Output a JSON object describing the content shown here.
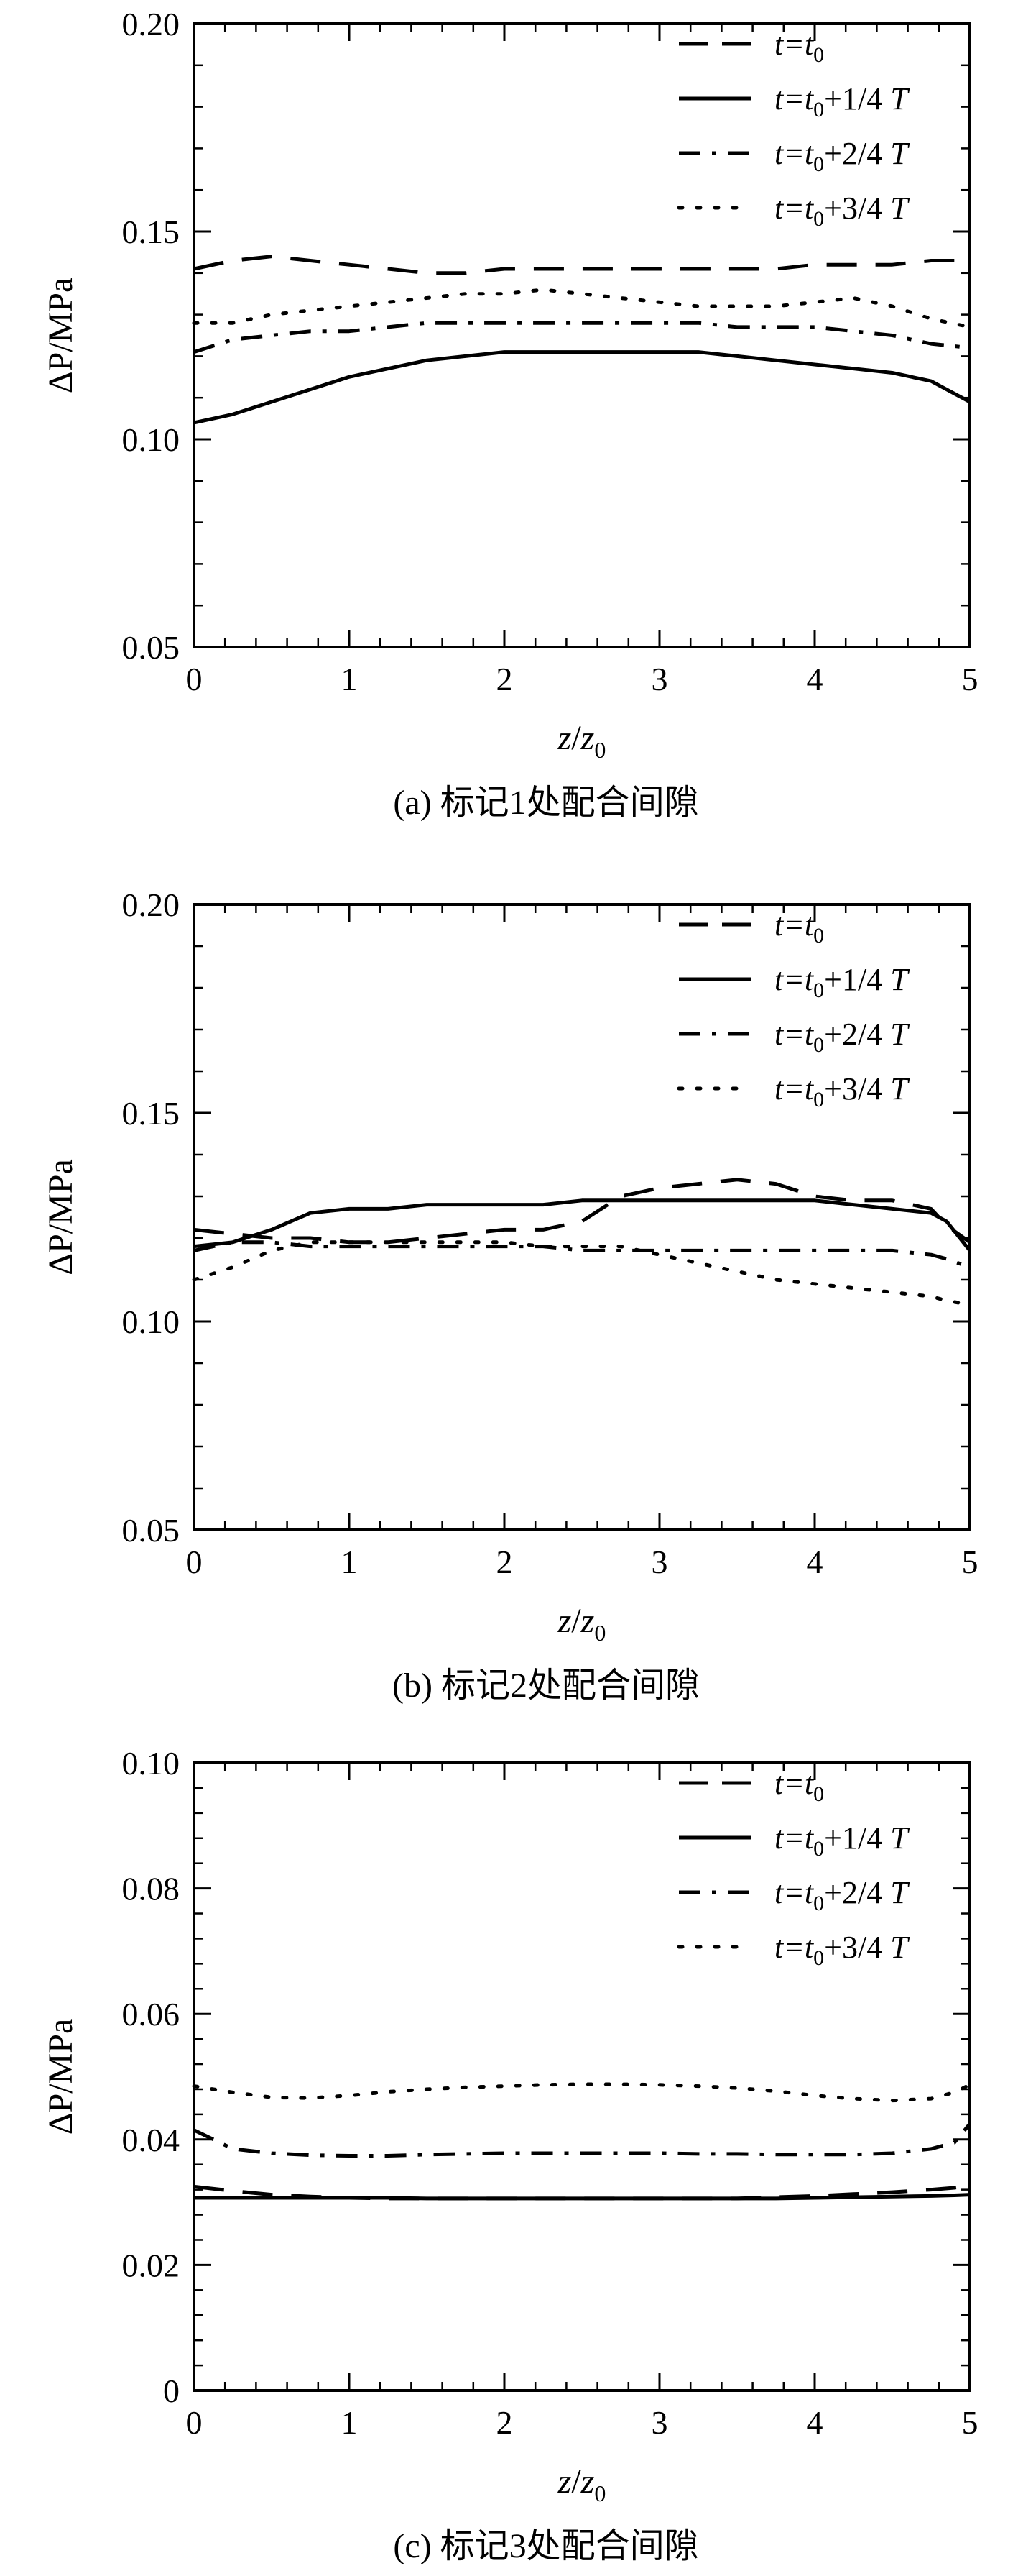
{
  "figure": "Pressure difference along z at four times for three marks",
  "legend_entries": [
    {
      "time": "t0",
      "parts": [
        "t",
        "=t",
        "0",
        ""
      ],
      "dash": "dashed"
    },
    {
      "time": "t0+1/4 T",
      "parts": [
        "t",
        "=t",
        "0",
        "+1/4 T"
      ],
      "dash": "solid"
    },
    {
      "time": "t0+2/4 T",
      "parts": [
        "t",
        "=t",
        "0",
        "+2/4 T"
      ],
      "dash": "dashdot"
    },
    {
      "time": "t0+3/4 T",
      "parts": [
        "t",
        "=t",
        "0",
        "+3/4 T"
      ],
      "dash": "dotted"
    }
  ],
  "chart_data": [
    {
      "type": "line",
      "caption": "(a) 标记1处配合间隙",
      "xlabel": "z/z0",
      "xlabel_parts": [
        "z",
        "/",
        "z",
        "0"
      ],
      "ylabel": "ΔP/MPa",
      "xlim": [
        0,
        5
      ],
      "ylim": [
        0.05,
        0.2
      ],
      "x_ticks": [
        "0",
        "1",
        "2",
        "3",
        "4",
        "5"
      ],
      "y_ticks": [
        "0.05",
        "0.10",
        "0.15",
        "0.20"
      ],
      "y_tick_values": [
        0.05,
        0.1,
        0.15,
        0.2
      ],
      "x": [
        0,
        0.25,
        0.5,
        0.75,
        1,
        1.25,
        1.5,
        1.75,
        2,
        2.25,
        2.5,
        2.75,
        3,
        3.25,
        3.5,
        3.75,
        4,
        4.25,
        4.5,
        4.75,
        5
      ],
      "series": [
        {
          "name": "t=t0",
          "values": [
            0.141,
            0.143,
            0.144,
            0.143,
            0.142,
            0.141,
            0.14,
            0.14,
            0.141,
            0.141,
            0.141,
            0.141,
            0.141,
            0.141,
            0.141,
            0.141,
            0.142,
            0.142,
            0.142,
            0.143,
            0.143
          ]
        },
        {
          "name": "t=t0+1/4 T",
          "values": [
            0.104,
            0.106,
            0.109,
            0.112,
            0.115,
            0.117,
            0.119,
            0.12,
            0.121,
            0.121,
            0.121,
            0.121,
            0.121,
            0.121,
            0.12,
            0.119,
            0.118,
            0.117,
            0.116,
            0.114,
            0.109
          ]
        },
        {
          "name": "t=t0+2/4 T",
          "values": [
            0.121,
            0.124,
            0.125,
            0.126,
            0.126,
            0.127,
            0.128,
            0.128,
            0.128,
            0.128,
            0.128,
            0.128,
            0.128,
            0.128,
            0.127,
            0.127,
            0.127,
            0.126,
            0.125,
            0.123,
            0.122
          ]
        },
        {
          "name": "t=t0+3/4 T",
          "values": [
            0.128,
            0.128,
            0.13,
            0.131,
            0.132,
            0.133,
            0.134,
            0.135,
            0.135,
            0.136,
            0.135,
            0.134,
            0.133,
            0.132,
            0.132,
            0.132,
            0.133,
            0.134,
            0.132,
            0.129,
            0.127
          ]
        }
      ]
    },
    {
      "type": "line",
      "caption": "(b) 标记2处配合间隙",
      "xlabel": "z/z0",
      "xlabel_parts": [
        "z",
        "/",
        "z",
        "0"
      ],
      "ylabel": "ΔP/MPa",
      "xlim": [
        0,
        5
      ],
      "ylim": [
        0.05,
        0.2
      ],
      "x_ticks": [
        "0",
        "1",
        "2",
        "3",
        "4",
        "5"
      ],
      "y_ticks": [
        "0.05",
        "0.10",
        "0.15",
        "0.20"
      ],
      "y_tick_values": [
        0.05,
        0.1,
        0.15,
        0.2
      ],
      "x": [
        0,
        0.25,
        0.5,
        0.75,
        1,
        1.25,
        1.5,
        1.75,
        2,
        2.25,
        2.5,
        2.75,
        3,
        3.25,
        3.5,
        3.75,
        4,
        4.25,
        4.5,
        4.75,
        4.85,
        5
      ],
      "series": [
        {
          "name": "t=t0",
          "values": [
            0.122,
            0.121,
            0.12,
            0.12,
            0.119,
            0.119,
            0.12,
            0.121,
            0.122,
            0.122,
            0.124,
            0.13,
            0.132,
            0.133,
            0.134,
            0.133,
            0.13,
            0.129,
            0.129,
            0.127,
            0.123,
            0.119
          ]
        },
        {
          "name": "t=t0+1/4 T",
          "values": [
            0.118,
            0.119,
            0.122,
            0.126,
            0.127,
            0.127,
            0.128,
            0.128,
            0.128,
            0.128,
            0.129,
            0.129,
            0.129,
            0.129,
            0.129,
            0.129,
            0.129,
            0.128,
            0.127,
            0.126,
            0.124,
            0.117
          ]
        },
        {
          "name": "t=t0+2/4 T",
          "values": [
            0.117,
            0.119,
            0.119,
            0.118,
            0.118,
            0.118,
            0.118,
            0.118,
            0.118,
            0.118,
            0.117,
            0.117,
            0.117,
            0.117,
            0.117,
            0.117,
            0.117,
            0.117,
            0.117,
            0.116,
            0.115,
            0.113
          ]
        },
        {
          "name": "t=t0+3/4 T",
          "values": [
            0.11,
            0.113,
            0.117,
            0.119,
            0.119,
            0.119,
            0.119,
            0.119,
            0.119,
            0.118,
            0.118,
            0.118,
            0.116,
            0.114,
            0.112,
            0.11,
            0.109,
            0.108,
            0.107,
            0.106,
            0.105,
            0.104
          ]
        }
      ]
    },
    {
      "type": "line",
      "caption": "(c) 标记3处配合间隙",
      "xlabel": "z/z0",
      "xlabel_parts": [
        "z",
        "/",
        "z",
        "0"
      ],
      "ylabel": "ΔP/MPa",
      "xlim": [
        0,
        5
      ],
      "ylim": [
        0,
        0.1
      ],
      "x_ticks": [
        "0",
        "1",
        "2",
        "3",
        "4",
        "5"
      ],
      "y_ticks": [
        "0",
        "0.02",
        "0.04",
        "0.06",
        "0.08",
        "0.10"
      ],
      "y_tick_values": [
        0,
        0.02,
        0.04,
        0.06,
        0.08,
        0.1
      ],
      "x": [
        0,
        0.25,
        0.5,
        0.75,
        1,
        1.25,
        1.5,
        1.75,
        2,
        2.25,
        2.5,
        2.75,
        3,
        3.25,
        3.5,
        3.75,
        4,
        4.25,
        4.5,
        4.75,
        4.9,
        5
      ],
      "series": [
        {
          "name": "t=t0",
          "values": [
            0.0325,
            0.0318,
            0.0312,
            0.0309,
            0.0307,
            0.0306,
            0.0306,
            0.0306,
            0.0306,
            0.0306,
            0.0306,
            0.0306,
            0.0306,
            0.0306,
            0.0306,
            0.0308,
            0.031,
            0.0313,
            0.0316,
            0.032,
            0.0323,
            0.0326
          ]
        },
        {
          "name": "t=t0+1/4 T",
          "values": [
            0.0307,
            0.0307,
            0.0307,
            0.0307,
            0.0307,
            0.0307,
            0.0306,
            0.0306,
            0.0306,
            0.0306,
            0.0306,
            0.0306,
            0.0306,
            0.0306,
            0.0306,
            0.0306,
            0.0307,
            0.0308,
            0.0309,
            0.031,
            0.0311,
            0.0312
          ]
        },
        {
          "name": "t=t0+2/4 T",
          "values": [
            0.0415,
            0.0385,
            0.0378,
            0.0375,
            0.0374,
            0.0374,
            0.0376,
            0.0377,
            0.0378,
            0.0378,
            0.0378,
            0.0378,
            0.0378,
            0.0377,
            0.0377,
            0.0376,
            0.0376,
            0.0376,
            0.0378,
            0.0385,
            0.0395,
            0.0425
          ]
        },
        {
          "name": "t=t0+3/4 T",
          "values": [
            0.0485,
            0.0475,
            0.0467,
            0.0466,
            0.047,
            0.0476,
            0.048,
            0.0483,
            0.0485,
            0.0487,
            0.0488,
            0.0488,
            0.0487,
            0.0485,
            0.0482,
            0.0477,
            0.047,
            0.0465,
            0.0462,
            0.0465,
            0.0475,
            0.0487
          ]
        }
      ]
    }
  ]
}
